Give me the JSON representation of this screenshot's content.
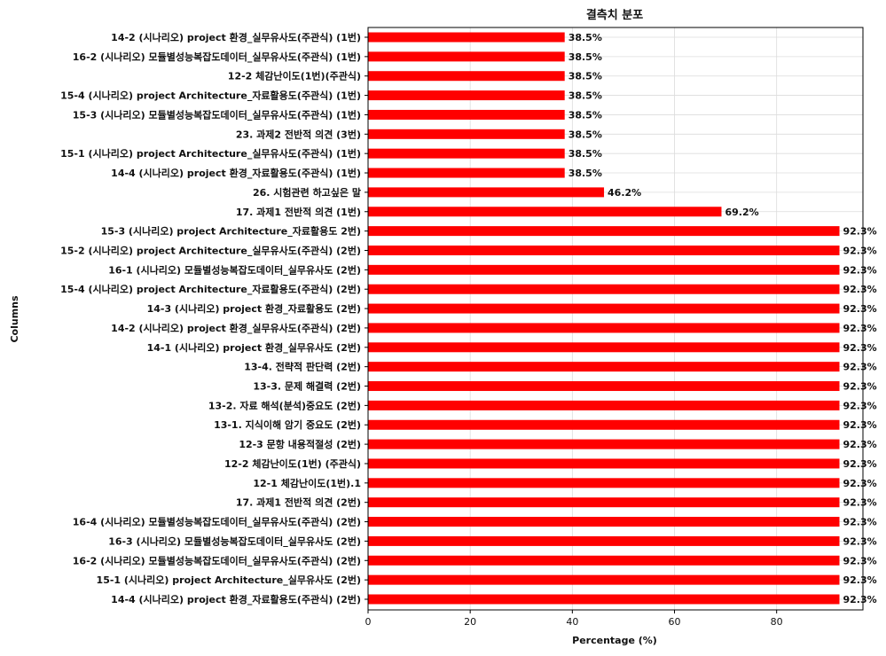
{
  "chart_data": {
    "type": "bar",
    "orientation": "horizontal",
    "title": "결측치 분포",
    "xlabel": "Percentage (%)",
    "ylabel": "Columns",
    "xlim": [
      0,
      96.9
    ],
    "xticks": [
      0,
      20,
      40,
      60,
      80
    ],
    "grid": true,
    "bar_color": "#ff0000",
    "value_format": "percent_1dp",
    "categories": [
      "14-2 (시나리오) project 환경_실무유사도(주관식) (1번)",
      "16-2 (시나리오) 모듈별성능복잡도데이터_실무유사도(주관식) (1번)",
      "12-2 체감난이도(1번)(주관식)",
      "15-4 (시나리오) project Architecture_자료활용도(주관식) (1번)",
      "15-3 (시나리오) 모듈별성능복잡도데이터_실무유사도(주관식) (1번)",
      "23. 과제2 전반적 의견 (3번)",
      "15-1 (시나리오) project Architecture_실무유사도(주관식) (1번)",
      "14-4 (시나리오) project 환경_자료활용도(주관식) (1번)",
      "26. 시험관련 하고싶은 말",
      "17. 과제1 전반적 의견 (1번)",
      "15-3 (시나리오) project Architecture_자료활용도 2번)",
      "15-2 (시나리오) project Architecture_실무유사도(주관식) (2번)",
      "16-1 (시나리오) 모듈별성능복잡도데이터_실무유사도 (2번)",
      "15-4 (시나리오) project Architecture_자료활용도(주관식) (2번)",
      "14-3 (시나리오) project 환경_자료활용도 (2번)",
      "14-2 (시나리오) project 환경_실무유사도(주관식) (2번)",
      "14-1 (시나리오) project 환경_실무유사도 (2번)",
      "13-4. 전략적 판단력 (2번)",
      "13-3. 문제 해결력 (2번)",
      "13-2. 자료 해석(분석)중요도 (2번)",
      "13-1. 지식이해 암기 중요도 (2번)",
      "12-3 문항 내용적절성 (2번)",
      "12-2 체감난이도(1번) (주관식)",
      "12-1 체감난이도(1번).1",
      "17. 과제1 전반적 의견 (2번)",
      "16-4 (시나리오) 모듈별성능복잡도데이터_실무유사도(주관식) (2번)",
      "16-3 (시나리오) 모듈별성능복잡도데이터_실무유사도 (2번)",
      "16-2 (시나리오) 모듈별성능복잡도데이터_실무유사도(주관식) (2번)",
      "15-1 (시나리오) project Architecture_실무유사도 (2번)",
      "14-4 (시나리오) project 환경_자료활용도(주관식) (2번)"
    ],
    "values": [
      38.5,
      38.5,
      38.5,
      38.5,
      38.5,
      38.5,
      38.5,
      38.5,
      46.2,
      69.2,
      92.3,
      92.3,
      92.3,
      92.3,
      92.3,
      92.3,
      92.3,
      92.3,
      92.3,
      92.3,
      92.3,
      92.3,
      92.3,
      92.3,
      92.3,
      92.3,
      92.3,
      92.3,
      92.3,
      92.3
    ]
  }
}
